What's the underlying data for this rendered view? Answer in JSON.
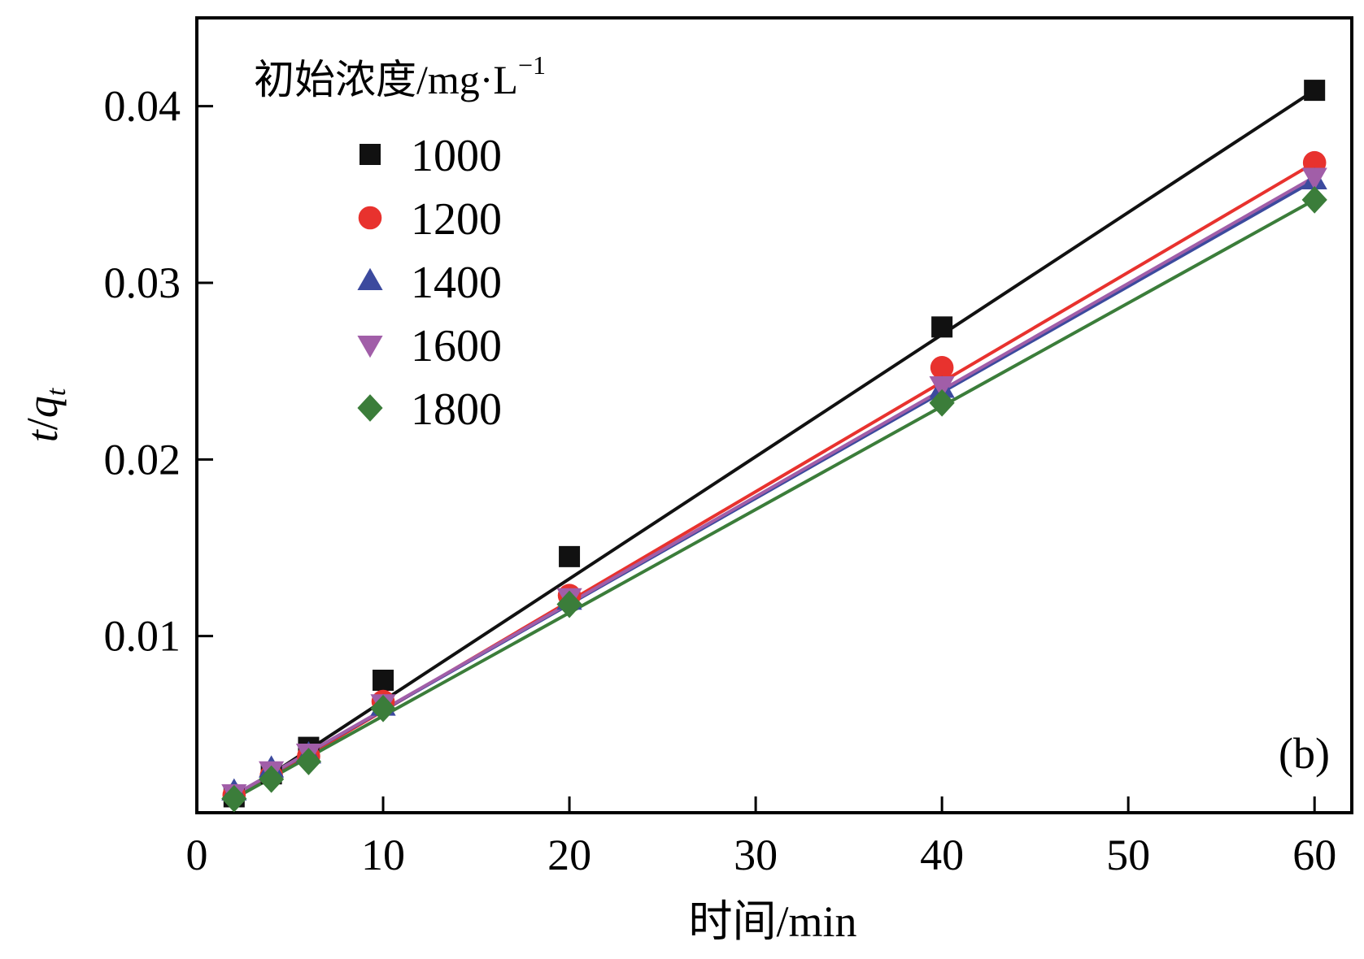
{
  "chart_data": {
    "type": "scatter",
    "panel_label": "(b)",
    "xlabel": "时间/min",
    "ylabel_main": "t",
    "ylabel_sep": "/",
    "ylabel_q": "q",
    "ylabel_sub": "t",
    "xlim": [
      0,
      62
    ],
    "ylim": [
      0,
      0.045
    ],
    "xticks": [
      0,
      10,
      20,
      30,
      40,
      50,
      60
    ],
    "xtick_labels": [
      "0",
      "10",
      "20",
      "30",
      "40",
      "50",
      "60"
    ],
    "yticks": [
      0.01,
      0.02,
      0.03,
      0.04
    ],
    "ytick_labels": [
      "0.01",
      "0.02",
      "0.03",
      "0.04"
    ],
    "grid": false,
    "legend_placement": "top-left",
    "legend_title": "初始浓度/mg·L",
    "legend_title_sup": "−1",
    "x": [
      2,
      4,
      6,
      10,
      20,
      40,
      60
    ],
    "series": [
      {
        "name": "1000",
        "marker": "square",
        "color": "#111111",
        "values": [
          0.0009,
          0.0022,
          0.0037,
          0.0075,
          0.0145,
          0.0275,
          0.0409
        ],
        "fit": [
          0.0008,
          0.0409
        ]
      },
      {
        "name": "1200",
        "marker": "circle",
        "color": "#e8322e",
        "values": [
          0.001,
          0.0021,
          0.0032,
          0.0063,
          0.0123,
          0.0252,
          0.0368
        ],
        "fit": [
          0.0008,
          0.0368
        ]
      },
      {
        "name": "1400",
        "marker": "triangle-up",
        "color": "#3c4a9e",
        "values": [
          0.0012,
          0.0025,
          0.0033,
          0.006,
          0.012,
          0.024,
          0.0358
        ],
        "fit": [
          0.001,
          0.0358
        ]
      },
      {
        "name": "1600",
        "marker": "triangle-down",
        "color": "#a15ea8",
        "values": [
          0.0011,
          0.0024,
          0.0034,
          0.0062,
          0.0122,
          0.0242,
          0.036
        ],
        "fit": [
          0.001,
          0.036
        ]
      },
      {
        "name": "1800",
        "marker": "diamond",
        "color": "#3b7d3a",
        "values": [
          0.0008,
          0.0019,
          0.0029,
          0.0059,
          0.0118,
          0.0232,
          0.0347
        ],
        "fit": [
          0.0008,
          0.0347
        ]
      }
    ]
  }
}
